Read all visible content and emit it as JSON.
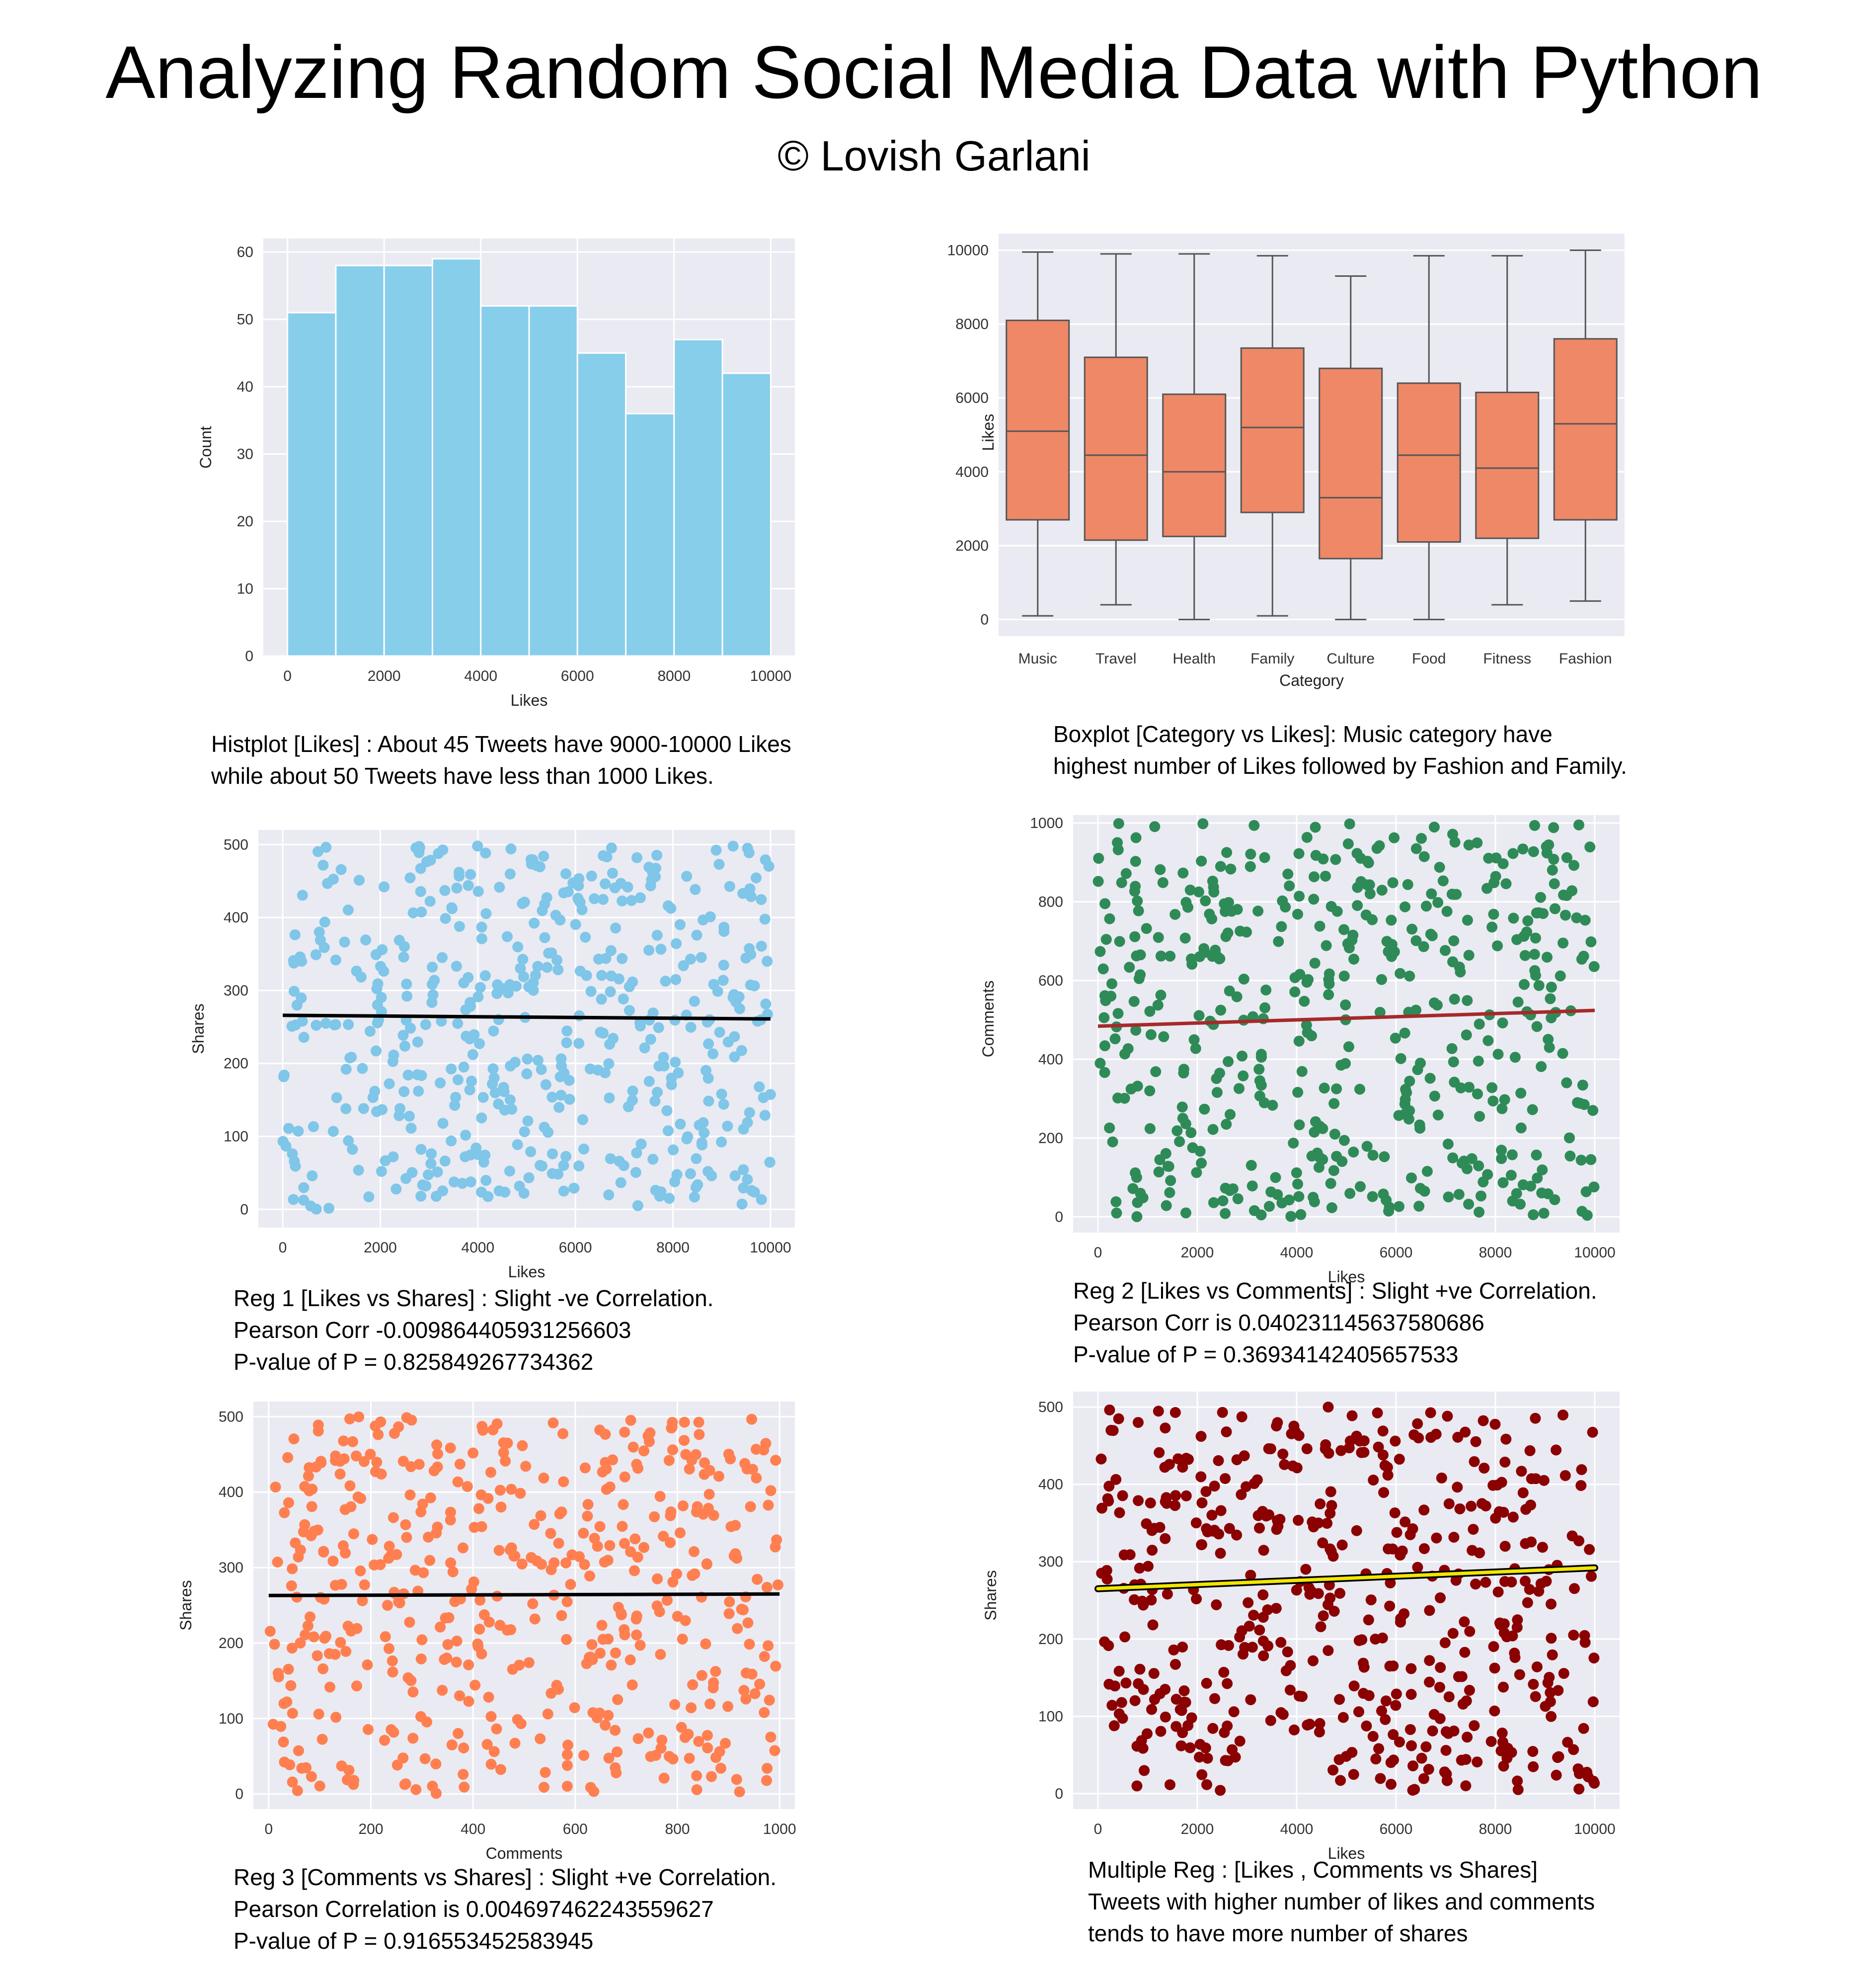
{
  "header": {
    "title": "Analyzing Random Social Media Data with Python",
    "subtitle": "© Lovish Garlani"
  },
  "captions": {
    "hist": [
      "Histplot [Likes] : About 45 Tweets have 9000-10000 Likes",
      "while about 50 Tweets have less than 1000 Likes."
    ],
    "box": [
      "Boxplot [Category vs Likes]: Music category have",
      "highest  number of Likes followed by Fashion and Family."
    ],
    "reg1": [
      "Reg 1 [Likes vs Shares] : Slight -ve Correlation.",
      "Pearson  Corr  -0.009864405931256603",
      "P-value of P = 0.825849267734362"
    ],
    "reg2": [
      "Reg 2 [Likes vs Comments] : Slight +ve Correlation.",
      "Pearson Corr  is 0.040231145637580686",
      "P-value of P = 0.36934142405657533"
    ],
    "reg3": [
      "Reg 3 [Comments vs Shares] : Slight +ve Correlation.",
      "Pearson Correlation is 0.004697462243559627",
      "P-value of P = 0.916553452583945"
    ],
    "multi": [
      "Multiple Reg : [Likes , Comments vs Shares]",
      "Tweets with higher number of likes and comments",
      "tends to have more number of shares"
    ]
  },
  "chart_data": [
    {
      "id": "hist",
      "type": "bar",
      "xlabel": "Likes",
      "ylabel": "Count",
      "bin_edges": [
        0,
        1000,
        2000,
        3000,
        4000,
        5000,
        6000,
        7000,
        8000,
        9000,
        10000
      ],
      "values": [
        51,
        58,
        58,
        59,
        52,
        52,
        45,
        36,
        47,
        42
      ],
      "xlim": [
        -500,
        10500
      ],
      "ylim": [
        0,
        62
      ],
      "xticks": [
        0,
        2000,
        4000,
        6000,
        8000,
        10000
      ],
      "yticks": [
        0,
        10,
        20,
        30,
        40,
        50,
        60
      ],
      "color": "#87ceeb"
    },
    {
      "id": "box",
      "type": "box",
      "xlabel": "Category",
      "ylabel": "Likes",
      "categories": [
        "Music",
        "Travel",
        "Health",
        "Family",
        "Culture",
        "Food",
        "Fitness",
        "Fashion"
      ],
      "boxes": [
        {
          "min": 100,
          "q1": 2700,
          "median": 5100,
          "q3": 8100,
          "max": 9950
        },
        {
          "min": 400,
          "q1": 2150,
          "median": 4450,
          "q3": 7100,
          "max": 9900
        },
        {
          "min": 0,
          "q1": 2250,
          "median": 4000,
          "q3": 6100,
          "max": 9900
        },
        {
          "min": 100,
          "q1": 2900,
          "median": 5200,
          "q3": 7350,
          "max": 9850
        },
        {
          "min": 0,
          "q1": 1650,
          "median": 3300,
          "q3": 6800,
          "max": 9300
        },
        {
          "min": 0,
          "q1": 2100,
          "median": 4450,
          "q3": 6400,
          "max": 9850
        },
        {
          "min": 400,
          "q1": 2200,
          "median": 4100,
          "q3": 6150,
          "max": 9850
        },
        {
          "min": 500,
          "q1": 2700,
          "median": 5300,
          "q3": 7600,
          "max": 10000
        }
      ],
      "ylim": [
        -450,
        10450
      ],
      "yticks": [
        0,
        2000,
        4000,
        6000,
        8000,
        10000
      ],
      "color": "#ee8866"
    },
    {
      "id": "reg1",
      "type": "scatter",
      "xlabel": "Likes",
      "ylabel": "Shares",
      "xlim": [
        -500,
        10500
      ],
      "ylim": [
        -25,
        520
      ],
      "xticks": [
        0,
        2000,
        4000,
        6000,
        8000,
        10000
      ],
      "yticks": [
        0,
        100,
        200,
        300,
        400,
        500
      ],
      "point_color": "#7fc6e8",
      "n_points": 500,
      "seed": 11,
      "fit_line": {
        "x": [
          0,
          10000
        ],
        "y": [
          266,
          261
        ],
        "color": "#000000"
      }
    },
    {
      "id": "reg2",
      "type": "scatter",
      "xlabel": "Likes",
      "ylabel": "Comments",
      "xlim": [
        -500,
        10500
      ],
      "ylim": [
        -40,
        1020
      ],
      "xticks": [
        0,
        2000,
        4000,
        6000,
        8000,
        10000
      ],
      "yticks": [
        0,
        200,
        400,
        600,
        800,
        1000
      ],
      "point_color": "#2e8b57",
      "n_points": 500,
      "seed": 23,
      "fit_line": {
        "x": [
          0,
          10000
        ],
        "y": [
          484,
          524
        ],
        "color": "#a52a2a"
      }
    },
    {
      "id": "reg3",
      "type": "scatter",
      "xlabel": "Comments",
      "ylabel": "Shares",
      "xlim": [
        -30,
        1030
      ],
      "ylim": [
        -20,
        520
      ],
      "xticks": [
        0,
        200,
        400,
        600,
        800,
        1000
      ],
      "yticks": [
        0,
        100,
        200,
        300,
        400,
        500
      ],
      "point_color": "#ff7f50",
      "n_points": 500,
      "seed": 37,
      "fit_line": {
        "x": [
          0,
          1000
        ],
        "y": [
          263,
          265
        ],
        "color": "#000000"
      }
    },
    {
      "id": "multi",
      "type": "scatter",
      "xlabel": "Likes",
      "ylabel": "Shares",
      "xlim": [
        -500,
        10500
      ],
      "ylim": [
        -20,
        520
      ],
      "xticks": [
        0,
        2000,
        4000,
        6000,
        8000,
        10000
      ],
      "yticks": [
        0,
        100,
        200,
        300,
        400,
        500
      ],
      "point_color": "#8b0000",
      "n_points": 500,
      "seed": 53,
      "fit_line": {
        "x": [
          0,
          10000
        ],
        "y": [
          265,
          292
        ],
        "color": "#f2e600",
        "outline": "#000000"
      }
    }
  ]
}
